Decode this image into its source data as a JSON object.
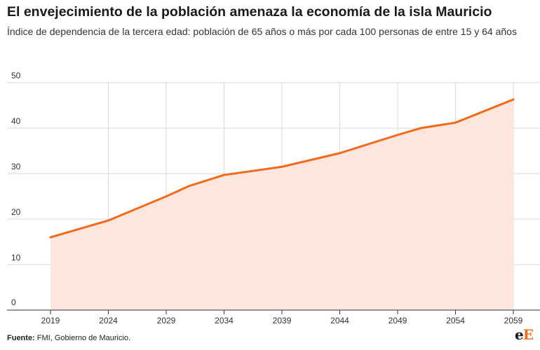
{
  "header": {
    "title": "El envejecimiento de la población amenaza la economía de la isla Mauricio",
    "subtitle": "Índice de dependencia de la tercera edad: población de 65 años o más por cada 100 personas de entre 15 y 64 años"
  },
  "footer": {
    "source_label": "Fuente:",
    "source_text": "FMI, Gobierno de Mauricio.",
    "logo_main": "e",
    "logo_accent": "E"
  },
  "colors": {
    "line": "#f26b1d",
    "area": "#fde6dd",
    "grid": "#d9d9d9",
    "axis": "#333333"
  },
  "chart_data": {
    "type": "area",
    "title": "El envejecimiento de la población amenaza la economía de la isla Mauricio",
    "subtitle": "Índice de dependencia de la tercera edad: población de 65 años o más por cada 100 personas de entre 15 y 64 años",
    "xlabel": "",
    "ylabel": "",
    "x": [
      2019,
      2024,
      2029,
      2031,
      2034,
      2039,
      2044,
      2049,
      2051,
      2054,
      2059
    ],
    "y": [
      16,
      19.7,
      25,
      27.3,
      29.7,
      31.5,
      34.5,
      38.5,
      40,
      41.2,
      46.3
    ],
    "x_ticks": [
      2019,
      2024,
      2029,
      2034,
      2039,
      2044,
      2049,
      2054,
      2059
    ],
    "y_ticks": [
      0,
      10,
      20,
      30,
      40,
      50
    ],
    "xlim": [
      2019,
      2059
    ],
    "ylim": [
      0,
      50
    ],
    "grid": true,
    "legend": "none"
  }
}
